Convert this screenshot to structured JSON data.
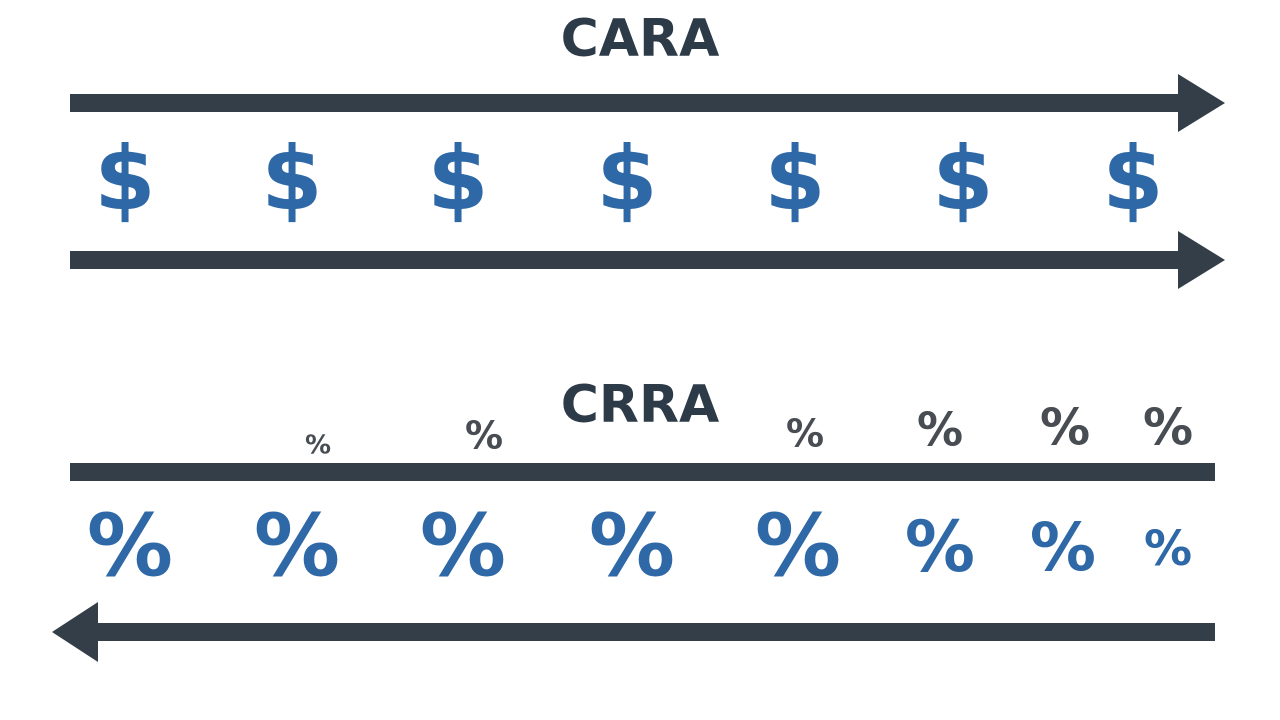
{
  "cara": {
    "title": "CARA",
    "symbols": [
      "$",
      "$",
      "$",
      "$",
      "$",
      "$",
      "$"
    ]
  },
  "crra": {
    "title": "CRRA",
    "upper_symbols": [
      "%",
      "%",
      "%",
      "%",
      "%",
      "%"
    ],
    "lower_symbols": [
      "%",
      "%",
      "%",
      "%",
      "%",
      "%",
      "%",
      "%"
    ]
  }
}
